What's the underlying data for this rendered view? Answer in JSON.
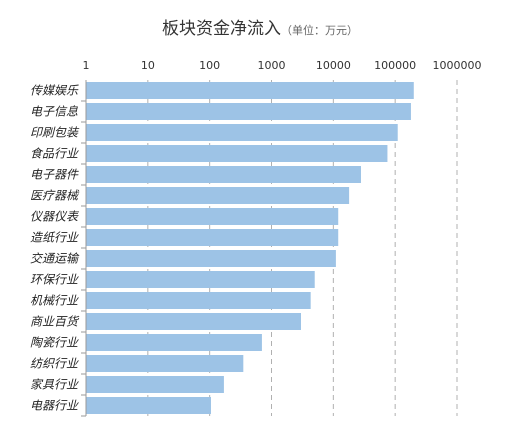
{
  "chart_data": {
    "type": "bar",
    "orientation": "horizontal",
    "title": "板块资金净流入",
    "unit": "（单位：万元）",
    "x_scale": "log",
    "xlim": [
      1,
      1000000
    ],
    "x_ticks": [
      "1",
      "10",
      "100",
      "1000",
      "10000",
      "100000",
      "1000000"
    ],
    "x_tick_values": [
      1,
      10,
      100,
      1000,
      10000,
      100000,
      1000000
    ],
    "x_axis_position": "top",
    "grid": "vertical dashed",
    "bar_color": "#9dc3e6",
    "categories": [
      "传媒娱乐",
      "电子信息",
      "印刷包装",
      "食品行业",
      "电子器件",
      "医疗器械",
      "仪器仪表",
      "造纸行业",
      "交通运输",
      "环保行业",
      "机械行业",
      "商业百货",
      "陶瓷行业",
      "纺织行业",
      "家具行业",
      "电器行业"
    ],
    "values": [
      200000,
      180000,
      110000,
      75000,
      28000,
      18000,
      12000,
      12000,
      11000,
      5000,
      4300,
      3000,
      700,
      350,
      170,
      105
    ]
  }
}
